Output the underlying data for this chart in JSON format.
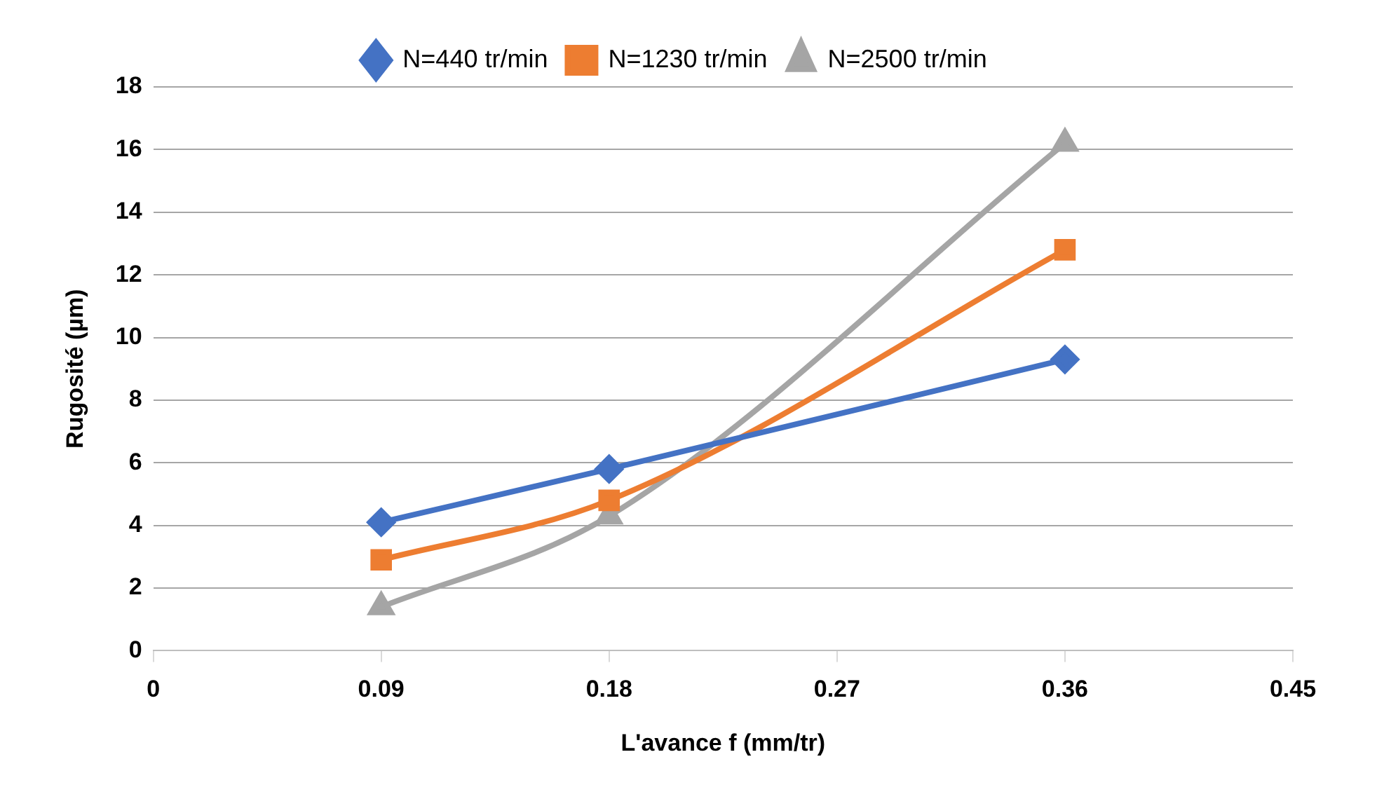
{
  "chart_data": {
    "type": "line",
    "xlabel": "L'avance f (mm/tr)",
    "ylabel": "Rugosité (µm)",
    "x": [
      0.09,
      0.18,
      0.36
    ],
    "series": [
      {
        "name": "N=440 tr/min",
        "color": "#4472c4",
        "marker": "diamond",
        "values": [
          4.1,
          5.8,
          9.3
        ]
      },
      {
        "name": "N=1230 tr/min",
        "color": "#ed7d31",
        "marker": "square",
        "values": [
          2.9,
          4.8,
          12.8
        ]
      },
      {
        "name": "N=2500 tr/min",
        "color": "#a5a5a5",
        "marker": "triangle",
        "values": [
          1.4,
          4.3,
          16.2
        ]
      }
    ],
    "xlim": [
      0,
      0.45
    ],
    "xticks": [
      0,
      0.09,
      0.18,
      0.27,
      0.36,
      0.45
    ],
    "ylim": [
      0,
      18
    ],
    "yticks": [
      0,
      2,
      4,
      6,
      8,
      10,
      12,
      14,
      16,
      18
    ],
    "grid": "y",
    "legend": "top",
    "line_style": "solid"
  }
}
